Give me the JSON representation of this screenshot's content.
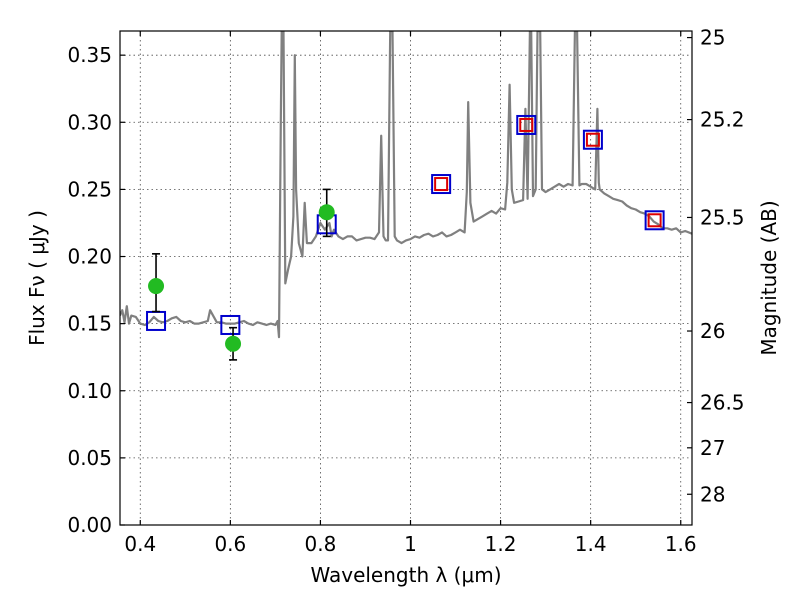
{
  "chart_data": {
    "type": "line",
    "xlabel": "Wavelength  λ (μm)",
    "ylabel": "Flux  Fν  ( μJy )",
    "ylabel_right": "Magnitude (AB)",
    "xlim": [
      0.355,
      1.625
    ],
    "ylim": [
      0.0,
      0.368
    ],
    "grid": true,
    "x_ticks": [
      0.4,
      0.6,
      0.8,
      1.0,
      1.2,
      1.4,
      1.6
    ],
    "x_tick_labels": [
      "0.4",
      "0.6",
      "0.8",
      "1",
      "1.2",
      "1.4",
      "1.6"
    ],
    "y_ticks": [
      0.0,
      0.05,
      0.1,
      0.15,
      0.2,
      0.25,
      0.3,
      0.35
    ],
    "y_tick_labels": [
      "0.00",
      "0.05",
      "0.10",
      "0.15",
      "0.20",
      "0.25",
      "0.30",
      "0.35"
    ],
    "right_ticks": [
      {
        "flux": 0.3631,
        "label": "25"
      },
      {
        "flux": 0.302,
        "label": "25.2"
      },
      {
        "flux": 0.2291,
        "label": "25.5"
      },
      {
        "flux": 0.1445,
        "label": "26"
      },
      {
        "flux": 0.0912,
        "label": "26.5"
      },
      {
        "flux": 0.0575,
        "label": "27"
      },
      {
        "flux": 0.0229,
        "label": "28"
      }
    ],
    "series": [
      {
        "type": "line",
        "color": "#808080",
        "points": [
          [
            0.355,
            0.156
          ],
          [
            0.36,
            0.16
          ],
          [
            0.365,
            0.151
          ],
          [
            0.37,
            0.163
          ],
          [
            0.375,
            0.15
          ],
          [
            0.38,
            0.156
          ],
          [
            0.39,
            0.155
          ],
          [
            0.4,
            0.15
          ],
          [
            0.41,
            0.149
          ],
          [
            0.42,
            0.151
          ],
          [
            0.43,
            0.155
          ],
          [
            0.44,
            0.152
          ],
          [
            0.45,
            0.151
          ],
          [
            0.46,
            0.152
          ],
          [
            0.47,
            0.154
          ],
          [
            0.48,
            0.155
          ],
          [
            0.49,
            0.152
          ],
          [
            0.5,
            0.151
          ],
          [
            0.51,
            0.152
          ],
          [
            0.52,
            0.15
          ],
          [
            0.53,
            0.15
          ],
          [
            0.54,
            0.151
          ],
          [
            0.55,
            0.152
          ],
          [
            0.555,
            0.16
          ],
          [
            0.56,
            0.157
          ],
          [
            0.57,
            0.151
          ],
          [
            0.58,
            0.151
          ],
          [
            0.59,
            0.15
          ],
          [
            0.6,
            0.15
          ],
          [
            0.61,
            0.15
          ],
          [
            0.62,
            0.151
          ],
          [
            0.63,
            0.152
          ],
          [
            0.64,
            0.15
          ],
          [
            0.65,
            0.149
          ],
          [
            0.66,
            0.151
          ],
          [
            0.67,
            0.15
          ],
          [
            0.68,
            0.149
          ],
          [
            0.69,
            0.15
          ],
          [
            0.7,
            0.149
          ],
          [
            0.705,
            0.152
          ],
          [
            0.708,
            0.14
          ],
          [
            0.712,
            0.3
          ],
          [
            0.714,
            0.368
          ],
          [
            0.718,
            0.368
          ],
          [
            0.722,
            0.18
          ],
          [
            0.728,
            0.19
          ],
          [
            0.735,
            0.2
          ],
          [
            0.74,
            0.23
          ],
          [
            0.743,
            0.35
          ],
          [
            0.746,
            0.25
          ],
          [
            0.752,
            0.21
          ],
          [
            0.76,
            0.2
          ],
          [
            0.765,
            0.24
          ],
          [
            0.77,
            0.21
          ],
          [
            0.78,
            0.21
          ],
          [
            0.79,
            0.215
          ],
          [
            0.8,
            0.225
          ],
          [
            0.81,
            0.22
          ],
          [
            0.82,
            0.225
          ],
          [
            0.825,
            0.215
          ],
          [
            0.83,
            0.22
          ],
          [
            0.84,
            0.215
          ],
          [
            0.85,
            0.213
          ],
          [
            0.86,
            0.215
          ],
          [
            0.87,
            0.215
          ],
          [
            0.88,
            0.212
          ],
          [
            0.89,
            0.213
          ],
          [
            0.9,
            0.214
          ],
          [
            0.91,
            0.214
          ],
          [
            0.92,
            0.213
          ],
          [
            0.93,
            0.218
          ],
          [
            0.935,
            0.29
          ],
          [
            0.94,
            0.215
          ],
          [
            0.945,
            0.212
          ],
          [
            0.95,
            0.212
          ],
          [
            0.955,
            0.368
          ],
          [
            0.96,
            0.368
          ],
          [
            0.965,
            0.215
          ],
          [
            0.97,
            0.212
          ],
          [
            0.98,
            0.21
          ],
          [
            0.99,
            0.212
          ],
          [
            1.0,
            0.213
          ],
          [
            1.01,
            0.215
          ],
          [
            1.02,
            0.214
          ],
          [
            1.03,
            0.216
          ],
          [
            1.04,
            0.217
          ],
          [
            1.05,
            0.215
          ],
          [
            1.06,
            0.216
          ],
          [
            1.07,
            0.218
          ],
          [
            1.08,
            0.215
          ],
          [
            1.09,
            0.216
          ],
          [
            1.1,
            0.218
          ],
          [
            1.11,
            0.22
          ],
          [
            1.12,
            0.218
          ],
          [
            1.125,
            0.248
          ],
          [
            1.128,
            0.315
          ],
          [
            1.133,
            0.24
          ],
          [
            1.14,
            0.226
          ],
          [
            1.15,
            0.228
          ],
          [
            1.16,
            0.23
          ],
          [
            1.17,
            0.232
          ],
          [
            1.18,
            0.234
          ],
          [
            1.19,
            0.232
          ],
          [
            1.2,
            0.236
          ],
          [
            1.21,
            0.235
          ],
          [
            1.215,
            0.255
          ],
          [
            1.22,
            0.328
          ],
          [
            1.225,
            0.25
          ],
          [
            1.23,
            0.24
          ],
          [
            1.24,
            0.241
          ],
          [
            1.25,
            0.242
          ],
          [
            1.255,
            0.31
          ],
          [
            1.26,
            0.243
          ],
          [
            1.265,
            0.368
          ],
          [
            1.268,
            0.368
          ],
          [
            1.272,
            0.245
          ],
          [
            1.278,
            0.25
          ],
          [
            1.282,
            0.368
          ],
          [
            1.288,
            0.368
          ],
          [
            1.292,
            0.25
          ],
          [
            1.3,
            0.248
          ],
          [
            1.31,
            0.25
          ],
          [
            1.32,
            0.252
          ],
          [
            1.33,
            0.254
          ],
          [
            1.34,
            0.252
          ],
          [
            1.35,
            0.254
          ],
          [
            1.36,
            0.253
          ],
          [
            1.365,
            0.368
          ],
          [
            1.37,
            0.368
          ],
          [
            1.375,
            0.253
          ],
          [
            1.38,
            0.254
          ],
          [
            1.39,
            0.254
          ],
          [
            1.4,
            0.252
          ],
          [
            1.41,
            0.25
          ],
          [
            1.415,
            0.31
          ],
          [
            1.418,
            0.255
          ],
          [
            1.42,
            0.25
          ],
          [
            1.43,
            0.247
          ],
          [
            1.44,
            0.245
          ],
          [
            1.45,
            0.243
          ],
          [
            1.46,
            0.242
          ],
          [
            1.47,
            0.241
          ],
          [
            1.48,
            0.238
          ],
          [
            1.49,
            0.236
          ],
          [
            1.5,
            0.235
          ],
          [
            1.51,
            0.233
          ],
          [
            1.52,
            0.232
          ],
          [
            1.53,
            0.23
          ],
          [
            1.54,
            0.226
          ],
          [
            1.55,
            0.224
          ],
          [
            1.56,
            0.221
          ],
          [
            1.57,
            0.221
          ],
          [
            1.58,
            0.22
          ],
          [
            1.59,
            0.221
          ],
          [
            1.6,
            0.218
          ],
          [
            1.61,
            0.219
          ],
          [
            1.625,
            0.217
          ]
        ]
      },
      {
        "type": "scatter",
        "marker": "square",
        "color": "#0000cc",
        "points": [
          [
            0.435,
            0.152
          ],
          [
            0.6,
            0.149
          ],
          [
            0.814,
            0.224
          ],
          [
            1.068,
            0.254
          ],
          [
            1.257,
            0.298
          ],
          [
            1.405,
            0.287
          ],
          [
            1.542,
            0.227
          ]
        ]
      },
      {
        "type": "scatter",
        "marker": "square",
        "color": "#dd0000",
        "points": [
          [
            1.068,
            0.254
          ],
          [
            1.257,
            0.298
          ],
          [
            1.405,
            0.287
          ],
          [
            1.542,
            0.227
          ]
        ]
      },
      {
        "type": "scatter",
        "marker": "circle",
        "color": "#22bb22",
        "points": [
          {
            "x": 0.435,
            "y": 0.178,
            "yerr": [
              0.159,
              0.202
            ]
          },
          {
            "x": 0.606,
            "y": 0.135,
            "yerr": [
              0.123,
              0.147
            ]
          },
          {
            "x": 0.814,
            "y": 0.233,
            "yerr": [
              0.215,
              0.25
            ]
          }
        ]
      }
    ]
  }
}
